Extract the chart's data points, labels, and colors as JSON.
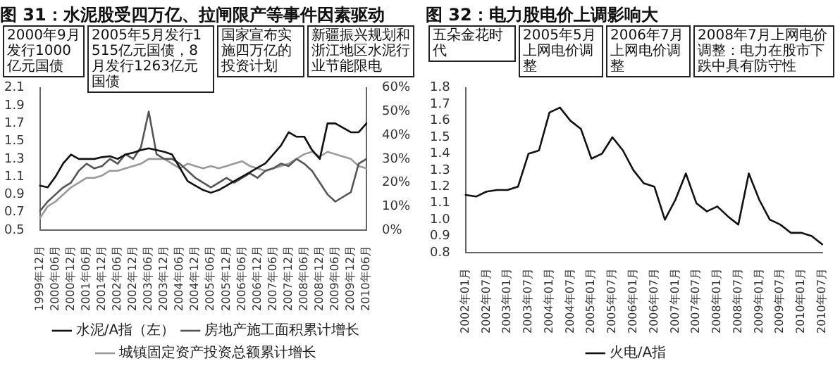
{
  "chart_data": [
    {
      "type": "line",
      "title": "图 31：水泥股受四万亿、拉闸限产等事件因素驱动",
      "categories": [
        "1999年12月",
        null,
        "2000年06月",
        null,
        "2000年12月",
        null,
        "2001年06月",
        null,
        "2001年12月",
        null,
        "2002年06月",
        null,
        "2002年12月",
        null,
        "2003年06月",
        null,
        "2003年12月",
        null,
        "2004年06月",
        null,
        "2004年12月",
        null,
        "2005年06月",
        null,
        "2005年12月",
        null,
        "2006年06月",
        null,
        "2006年12月",
        null,
        "2007年06月",
        null,
        "2007年12月",
        null,
        "2008年06月",
        null,
        "2008年12月",
        null,
        "2009年06月",
        null,
        "2009年12月",
        null,
        "2010年06月"
      ],
      "series": [
        {
          "name": "水泥/A指（左）",
          "color": "#111111",
          "values": [
            1.0,
            0.98,
            1.1,
            1.25,
            1.35,
            1.3,
            1.3,
            1.3,
            1.32,
            1.33,
            1.3,
            1.35,
            1.37,
            1.4,
            1.42,
            1.4,
            1.38,
            1.35,
            1.2,
            1.05,
            1.0,
            0.95,
            0.92,
            0.95,
            1.0,
            1.05,
            1.1,
            1.15,
            1.2,
            1.25,
            1.35,
            1.45,
            1.6,
            1.55,
            1.55,
            1.4,
            1.3,
            1.7,
            1.7,
            1.65,
            1.6,
            1.6,
            1.7
          ]
        },
        {
          "name": "房地产施工面积累计增长",
          "color": "#555555",
          "axis": "y2",
          "values": [
            8,
            12,
            15,
            18,
            20,
            25,
            28,
            26,
            27,
            30,
            28,
            32,
            30,
            35,
            50,
            32,
            30,
            30,
            28,
            25,
            22,
            20,
            18,
            20,
            22,
            20,
            22,
            24,
            22,
            25,
            26,
            28,
            27,
            30,
            28,
            25,
            20,
            15,
            12,
            14,
            16,
            28,
            30
          ]
        },
        {
          "name": "城镇固定资产投资总额累计增长",
          "color": "#999999",
          "axis": "y2",
          "values": [
            5,
            10,
            12,
            15,
            18,
            20,
            22,
            22,
            23,
            25,
            25,
            26,
            27,
            28,
            30,
            30,
            30,
            28,
            26,
            28,
            27,
            26,
            27,
            26,
            27,
            28,
            29,
            27,
            26,
            25,
            26,
            27,
            28,
            30,
            32,
            33,
            31,
            33,
            32,
            31,
            30,
            27,
            26
          ]
        }
      ],
      "ylim": [
        0.5,
        2.1
      ],
      "yticks": [
        0.5,
        0.7,
        0.9,
        1.1,
        1.3,
        1.5,
        1.7,
        1.9,
        2.1
      ],
      "y2lim": [
        0,
        60
      ],
      "y2ticks": [
        {
          "value": 0,
          "label": "0%"
        },
        {
          "value": 10,
          "label": "10%"
        },
        {
          "value": 20,
          "label": "20%"
        },
        {
          "value": 30,
          "label": "30%"
        },
        {
          "value": 40,
          "label": "40%"
        },
        {
          "value": 50,
          "label": "50%"
        },
        {
          "value": 60,
          "label": "60%"
        }
      ],
      "annotations": [
        "2000年9月发行1000亿元国债",
        "2005年5月发行1515亿元国债，8月发行1263亿元国债",
        "国家宣布实施四万亿的投资计划",
        "新疆振兴规划和浙江地区水泥行业节能限电"
      ],
      "marker": "none",
      "legend": "bottom"
    },
    {
      "type": "line",
      "title": "图 32：电力股电价上调影响大",
      "categories": [
        "2002年01月",
        null,
        "2002年07月",
        null,
        "2003年01月",
        null,
        "2003年07月",
        null,
        "2004年01月",
        null,
        "2004年07月",
        null,
        "2005年01月",
        null,
        "2005年07月",
        null,
        "2006年01月",
        null,
        "2006年07月",
        null,
        "2007年01月",
        null,
        "2007年07月",
        null,
        "2008年01月",
        null,
        "2008年07月",
        null,
        "2009年01月",
        null,
        "2009年07月",
        null,
        "2010年01月",
        null,
        "2010年07月"
      ],
      "series": [
        {
          "name": "火电/A指",
          "color": "#111111",
          "values": [
            1.15,
            1.14,
            1.17,
            1.18,
            1.18,
            1.2,
            1.4,
            1.42,
            1.65,
            1.68,
            1.6,
            1.55,
            1.37,
            1.4,
            1.5,
            1.42,
            1.3,
            1.22,
            1.2,
            1.0,
            1.12,
            1.28,
            1.1,
            1.05,
            1.08,
            1.02,
            0.97,
            1.28,
            1.12,
            1.0,
            0.97,
            0.92,
            0.92,
            0.9,
            0.85
          ]
        }
      ],
      "ylim": [
        0.8,
        1.8
      ],
      "yticks": [
        0.8,
        0.9,
        {
          "value": 1,
          "label": "1.0"
        },
        1.1,
        1.2,
        1.3,
        1.4,
        1.5,
        1.6,
        1.7,
        1.8
      ],
      "annotations": [
        "五朵金花时代",
        "2005年5月上网电价调整",
        "2006年7月上网电价调整",
        "2008年7月上网电价调整：电力在股市下跌中具有防守性"
      ],
      "marker": "none",
      "legend": "bottom"
    }
  ]
}
